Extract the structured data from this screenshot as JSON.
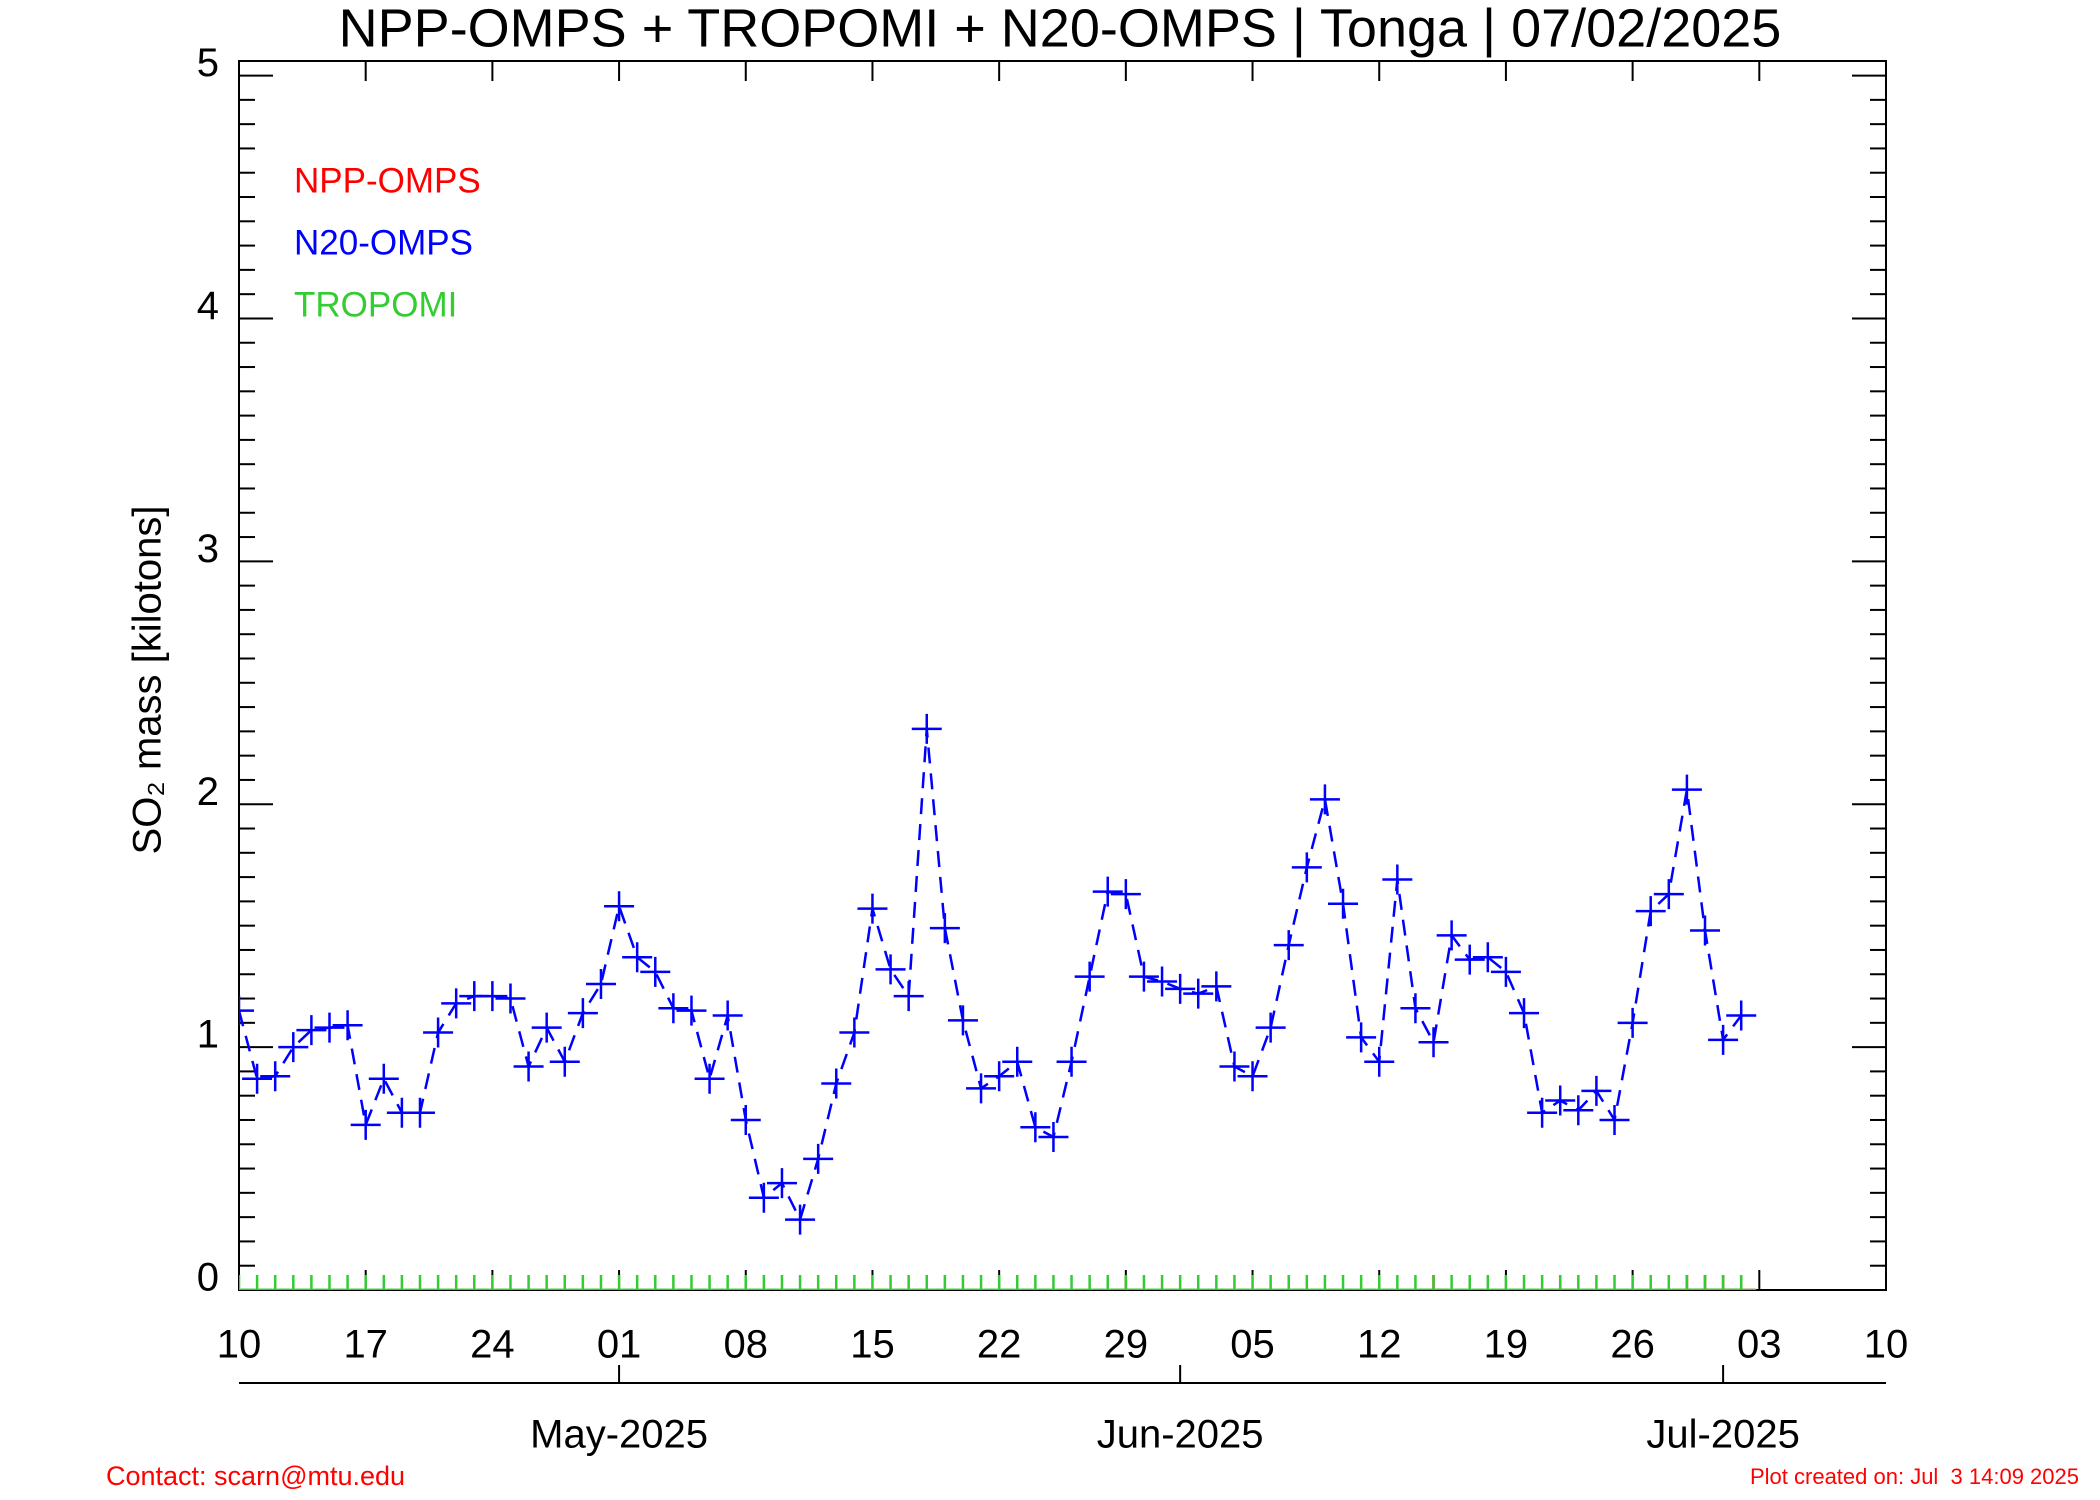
{
  "chart_data": {
    "type": "line",
    "title": "NPP-OMPS + TROPOMI + N20-OMPS | Tonga | 07/02/2025",
    "y_label": "SO₂ mass [kilotons]",
    "x": [
      "2025-04-10",
      "2025-04-11",
      "2025-04-12",
      "2025-04-13",
      "2025-04-14",
      "2025-04-15",
      "2025-04-16",
      "2025-04-17",
      "2025-04-18",
      "2025-04-19",
      "2025-04-20",
      "2025-04-21",
      "2025-04-22",
      "2025-04-23",
      "2025-04-24",
      "2025-04-25",
      "2025-04-26",
      "2025-04-27",
      "2025-04-28",
      "2025-04-29",
      "2025-04-30",
      "2025-05-01",
      "2025-05-02",
      "2025-05-03",
      "2025-05-04",
      "2025-05-05",
      "2025-05-06",
      "2025-05-07",
      "2025-05-08",
      "2025-05-09",
      "2025-05-10",
      "2025-05-11",
      "2025-05-12",
      "2025-05-13",
      "2025-05-14",
      "2025-05-15",
      "2025-05-16",
      "2025-05-17",
      "2025-05-18",
      "2025-05-19",
      "2025-05-20",
      "2025-05-21",
      "2025-05-22",
      "2025-05-23",
      "2025-05-24",
      "2025-05-25",
      "2025-05-26",
      "2025-05-27",
      "2025-05-28",
      "2025-05-29",
      "2025-05-30",
      "2025-05-31",
      "2025-06-01",
      "2025-06-02",
      "2025-06-03",
      "2025-06-04",
      "2025-06-05",
      "2025-06-06",
      "2025-06-07",
      "2025-06-08",
      "2025-06-09",
      "2025-06-10",
      "2025-06-11",
      "2025-06-12",
      "2025-06-13",
      "2025-06-14",
      "2025-06-15",
      "2025-06-16",
      "2025-06-17",
      "2025-06-18",
      "2025-06-19",
      "2025-06-20",
      "2025-06-21",
      "2025-06-22",
      "2025-06-23",
      "2025-06-24",
      "2025-06-25",
      "2025-06-26",
      "2025-06-27",
      "2025-06-28",
      "2025-06-29",
      "2025-06-30",
      "2025-07-01",
      "2025-07-02"
    ],
    "series": [
      {
        "name": "NPP-OMPS",
        "color": "#ff0000",
        "linestyle": "solid",
        "values": [
          null,
          null,
          null,
          null,
          null,
          null,
          null,
          null,
          null,
          null,
          null,
          null,
          null,
          null,
          null,
          null,
          null,
          null,
          null,
          null,
          null,
          null,
          null,
          null,
          null,
          null,
          null,
          null,
          null,
          null,
          null,
          null,
          null,
          null,
          null,
          null,
          null,
          null,
          null,
          null,
          null,
          null,
          null,
          null,
          null,
          null,
          null,
          null,
          null,
          0,
          null,
          null,
          null,
          null,
          null,
          null,
          null,
          null,
          null,
          null,
          null,
          null,
          null,
          null,
          null,
          null,
          0,
          null,
          null,
          null,
          null,
          null,
          null,
          0,
          null,
          null,
          null,
          null,
          null,
          null,
          0,
          0,
          0,
          0
        ]
      },
      {
        "name": "N20-OMPS",
        "color": "#0000ff",
        "linestyle": "dashed",
        "values": [
          1.15,
          0.87,
          0.88,
          1.0,
          1.07,
          1.08,
          1.09,
          0.68,
          0.87,
          0.73,
          0.73,
          1.06,
          1.18,
          1.21,
          1.21,
          1.2,
          0.92,
          1.08,
          0.94,
          1.14,
          1.26,
          1.58,
          1.37,
          1.31,
          1.16,
          1.15,
          0.87,
          1.13,
          0.7,
          0.38,
          0.44,
          0.29,
          0.54,
          0.85,
          1.06,
          1.57,
          1.32,
          1.21,
          2.31,
          1.49,
          1.11,
          0.83,
          0.88,
          0.94,
          0.67,
          0.63,
          0.94,
          1.29,
          1.64,
          1.63,
          1.29,
          1.27,
          1.24,
          1.22,
          1.25,
          0.92,
          0.88,
          1.08,
          1.42,
          1.74,
          2.02,
          1.59,
          1.04,
          0.94,
          1.69,
          1.16,
          1.02,
          1.46,
          1.36,
          1.37,
          1.31,
          1.14,
          0.73,
          0.78,
          0.74,
          0.82,
          0.7,
          1.1,
          1.56,
          1.63,
          2.06,
          1.48,
          1.03,
          1.13
        ]
      },
      {
        "name": "TROPOMI",
        "color": "#33cc33",
        "linestyle": "solid",
        "values": [
          0,
          0,
          0,
          0,
          0,
          0,
          0,
          0,
          0,
          0,
          0,
          0,
          0,
          0,
          0,
          0,
          0,
          0,
          0,
          0,
          0,
          0,
          0,
          0,
          0,
          0,
          0,
          0,
          0,
          0,
          0,
          0,
          0,
          0,
          0,
          0,
          0,
          0,
          0,
          0,
          0,
          0,
          0,
          0,
          0,
          0,
          0,
          0,
          0,
          0,
          0,
          0,
          0,
          0,
          0,
          0,
          0,
          0,
          0,
          0,
          0,
          0,
          0,
          0,
          0,
          0,
          0,
          0,
          0,
          0,
          0,
          0,
          0,
          0,
          0,
          0,
          0,
          0,
          0,
          0,
          0,
          0,
          0,
          0
        ]
      }
    ],
    "xlim": [
      "2025-04-10",
      "2025-07-10"
    ],
    "xticks": [
      {
        "value": "2025-04-10",
        "label": "10"
      },
      {
        "value": "2025-04-17",
        "label": "17"
      },
      {
        "value": "2025-04-24",
        "label": "24"
      },
      {
        "value": "2025-05-01",
        "label": "01"
      },
      {
        "value": "2025-05-08",
        "label": "08"
      },
      {
        "value": "2025-05-15",
        "label": "15"
      },
      {
        "value": "2025-05-22",
        "label": "22"
      },
      {
        "value": "2025-05-29",
        "label": "29"
      },
      {
        "value": "2025-06-05",
        "label": "05"
      },
      {
        "value": "2025-06-12",
        "label": "12"
      },
      {
        "value": "2025-06-19",
        "label": "19"
      },
      {
        "value": "2025-06-26",
        "label": "26"
      },
      {
        "value": "2025-07-03",
        "label": "03"
      },
      {
        "value": "2025-07-10",
        "label": "10"
      }
    ],
    "month_ticks": [
      {
        "value": "2025-05-01",
        "label": "May-2025"
      },
      {
        "value": "2025-06-01",
        "label": "Jun-2025"
      },
      {
        "value": "2025-07-01",
        "label": "Jul-2025"
      }
    ],
    "ylim": [
      0,
      5.06
    ],
    "yticks": [
      0,
      1,
      2,
      3,
      4,
      5
    ],
    "legend": "upper left",
    "footer_left": "Contact: scarn@mtu.edu",
    "footer_right": "Plot created on: Jul  3 14:09 2025"
  }
}
